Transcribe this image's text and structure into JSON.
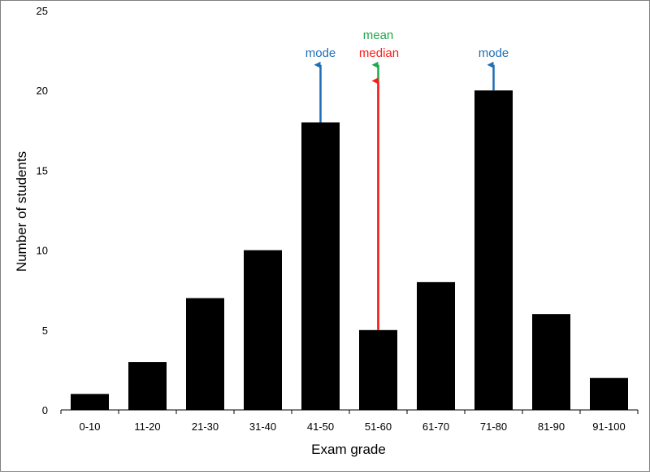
{
  "chart_data": {
    "type": "bar",
    "categories": [
      "0-10",
      "11-20",
      "21-30",
      "31-40",
      "41-50",
      "51-60",
      "61-70",
      "71-80",
      "81-90",
      "91-100"
    ],
    "values": [
      1,
      3,
      7,
      10,
      18,
      5,
      8,
      20,
      6,
      2
    ],
    "xlabel": "Exam grade",
    "ylabel": "Number of students",
    "ylim": [
      0,
      25
    ],
    "yticks": [
      0,
      5,
      10,
      15,
      20,
      25
    ],
    "grid": false,
    "legend": "none",
    "bar_color": "#000000",
    "annotations": [
      {
        "label": "mode",
        "category": "41-50",
        "color": "#1f6fb5",
        "arrow_from": 18,
        "arrow_to": 21.6
      },
      {
        "label": "mean",
        "category": "51-60",
        "color": "#1ea84a",
        "arrow_from": 5,
        "arrow_to": 21.6
      },
      {
        "label": "median",
        "category": "51-60",
        "color": "#ff1a1a",
        "arrow_from": 5,
        "arrow_to": 20.6
      },
      {
        "label": "mode",
        "category": "71-80",
        "color": "#1f6fb5",
        "arrow_from": 20,
        "arrow_to": 21.6
      }
    ]
  }
}
